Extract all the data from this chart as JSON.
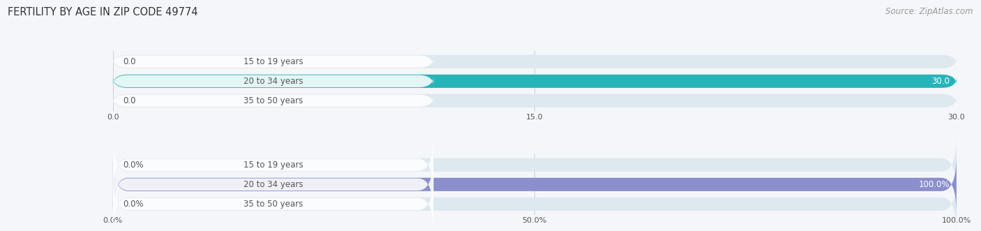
{
  "title": "FERTILITY BY AGE IN ZIP CODE 49774",
  "source": "Source: ZipAtlas.com",
  "top_chart": {
    "categories": [
      "15 to 19 years",
      "20 to 34 years",
      "35 to 50 years"
    ],
    "values": [
      0.0,
      30.0,
      0.0
    ],
    "xlim": [
      0,
      30.0
    ],
    "xticks": [
      0.0,
      15.0,
      30.0
    ],
    "xtick_labels": [
      "0.0",
      "15.0",
      "30.0"
    ],
    "bar_color": "#27b4b8",
    "bar_bg_color": "#dde8ef",
    "value_labels": [
      "0.0",
      "30.0",
      "0.0"
    ]
  },
  "bottom_chart": {
    "categories": [
      "15 to 19 years",
      "20 to 34 years",
      "35 to 50 years"
    ],
    "values": [
      0.0,
      100.0,
      0.0
    ],
    "xlim": [
      0,
      100.0
    ],
    "xticks": [
      0.0,
      50.0,
      100.0
    ],
    "xtick_labels": [
      "0.0%",
      "50.0%",
      "100.0%"
    ],
    "bar_color": "#8b8fcc",
    "bar_bg_color": "#dde8ef",
    "value_labels": [
      "0.0%",
      "100.0%",
      "0.0%"
    ]
  },
  "label_color": "#555555",
  "title_color": "#333333",
  "source_color": "#999999",
  "bg_color": "#f4f6f9",
  "label_fontsize": 8.5,
  "title_fontsize": 10.5,
  "source_fontsize": 8.5
}
